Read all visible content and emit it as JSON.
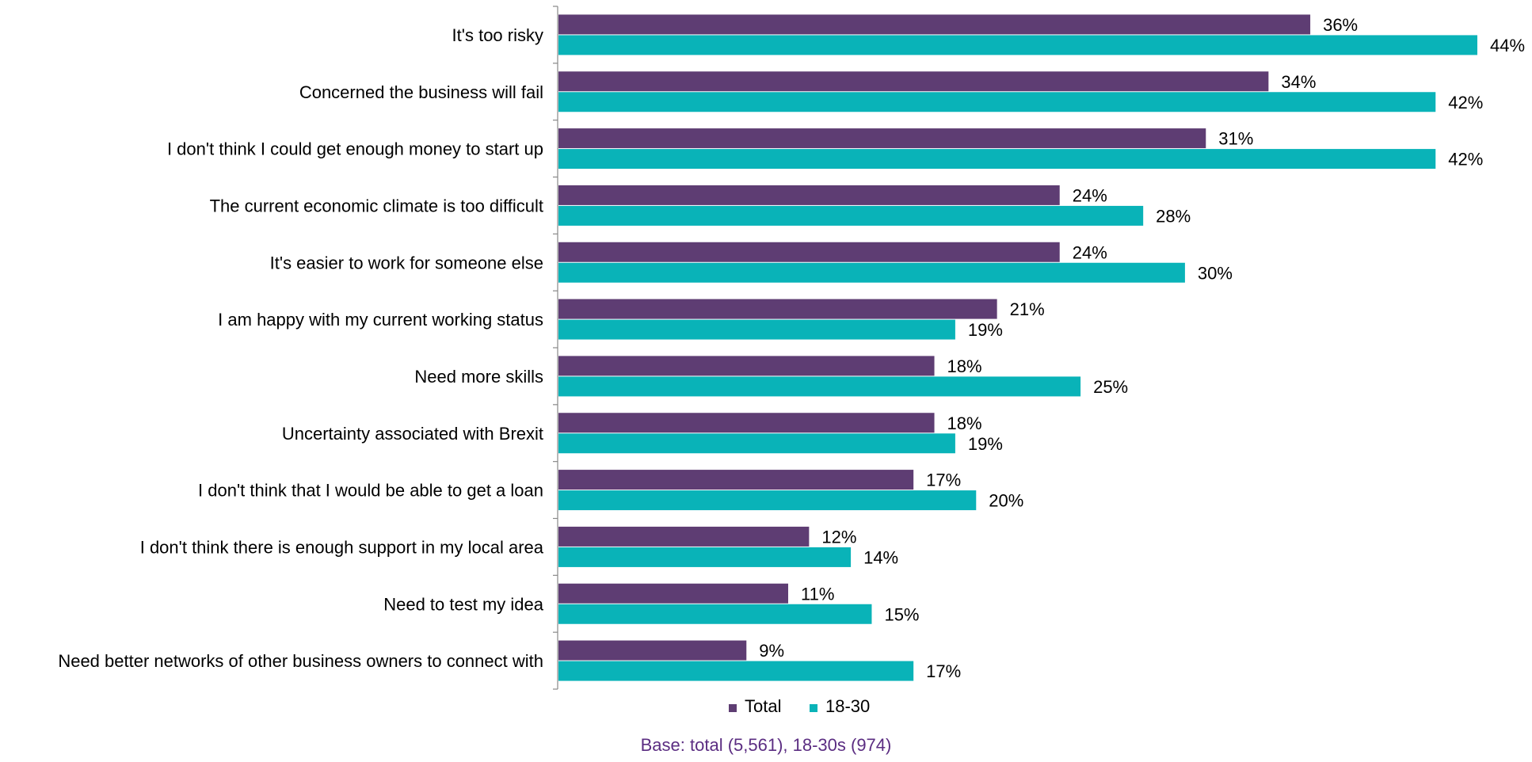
{
  "chart_data": {
    "type": "bar",
    "orientation": "horizontal",
    "categories": [
      "It's too risky",
      "Concerned the business will fail",
      "I don't think I could get enough money to start up",
      "The current economic climate is too difficult",
      "It's easier to work for someone else",
      "I am happy with my current working status",
      "Need more skills",
      "Uncertainty associated with Brexit",
      "I don't think that I would be able to get a loan",
      "I don't think there is enough support in my local area",
      "Need to test my idea",
      "Need better networks of other business owners to connect with"
    ],
    "series": [
      {
        "name": "Total",
        "color": "#5e3d73",
        "values": [
          36,
          34,
          31,
          24,
          24,
          21,
          18,
          18,
          17,
          12,
          11,
          9
        ],
        "labels": [
          "36%",
          "34%",
          "31%",
          "24%",
          "24%",
          "21%",
          "18%",
          "18%",
          "17%",
          "12%",
          "11%",
          "9%"
        ]
      },
      {
        "name": "18-30",
        "color": "#09b3b8",
        "values": [
          44,
          42,
          42,
          28,
          30,
          19,
          25,
          19,
          20,
          14,
          15,
          17
        ],
        "labels": [
          "44%",
          "42%",
          "42%",
          "28%",
          "30%",
          "19%",
          "25%",
          "19%",
          "20%",
          "14%",
          "15%",
          "17%"
        ]
      }
    ],
    "unit": "%",
    "xlim": [
      0,
      44
    ],
    "grid": false,
    "legend_position": "bottom",
    "footnote": "Base: total (5,561), 18-30s (974)"
  }
}
